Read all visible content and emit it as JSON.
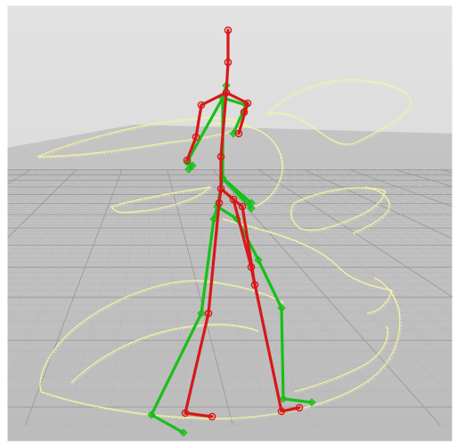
{
  "scene": {
    "background": "#d8d8d8",
    "grid_color": "#9a9a9a",
    "grid_minor_color": "#b6b6b6",
    "trajectory_color": "#f2f0a0",
    "skeleton_a": {
      "color": "#d81818",
      "joint_icon": "circle-joint-icon"
    },
    "skeleton_b": {
      "color": "#18c018",
      "joint_icon": "diamond-joint-icon"
    }
  }
}
